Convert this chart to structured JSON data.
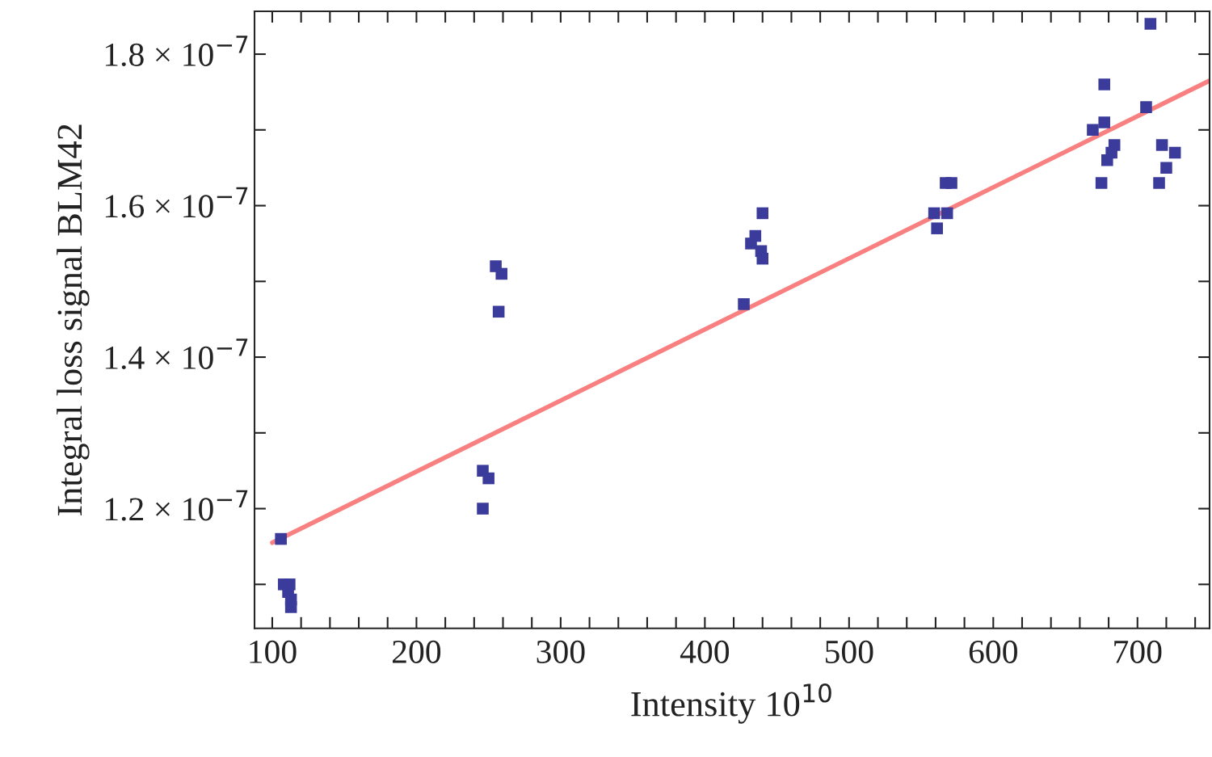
{
  "chart_data": {
    "type": "scatter",
    "xlabel": "Intensity 10$^{10}$",
    "ylabel": "Integral loss signal BLM42",
    "xlim": [
      87.7,
      750
    ],
    "ylim": [
      1.042e-07,
      1.8565e-07
    ],
    "xticks": [
      100,
      {
        "value": 120,
        "label": null
      },
      {
        "value": 140,
        "label": null
      },
      {
        "value": 160,
        "label": null
      },
      {
        "value": 180,
        "label": null
      },
      200,
      {
        "value": 220,
        "label": null
      },
      {
        "value": 240,
        "label": null
      },
      {
        "value": 260,
        "label": null
      },
      {
        "value": 280,
        "label": null
      },
      300,
      {
        "value": 320,
        "label": null
      },
      {
        "value": 340,
        "label": null
      },
      {
        "value": 360,
        "label": null
      },
      {
        "value": 380,
        "label": null
      },
      400,
      {
        "value": 420,
        "label": null
      },
      {
        "value": 440,
        "label": null
      },
      {
        "value": 460,
        "label": null
      },
      {
        "value": 480,
        "label": null
      },
      500,
      {
        "value": 520,
        "label": null
      },
      {
        "value": 540,
        "label": null
      },
      {
        "value": 560,
        "label": null
      },
      {
        "value": 580,
        "label": null
      },
      600,
      {
        "value": 620,
        "label": null
      },
      {
        "value": 640,
        "label": null
      },
      {
        "value": 660,
        "label": null
      },
      {
        "value": 680,
        "label": null
      },
      700,
      {
        "value": 720,
        "label": null
      },
      {
        "value": 740,
        "label": null
      }
    ],
    "yticks": [
      {
        "value": 1.1e-07,
        "label": null
      },
      {
        "value": 1.2e-07,
        "label": "1.2 × 10$^{−7}$"
      },
      {
        "value": 1.3e-07,
        "label": null
      },
      {
        "value": 1.4e-07,
        "label": "1.4 × 10$^{−7}$"
      },
      {
        "value": 1.5e-07,
        "label": null
      },
      {
        "value": 1.6e-07,
        "label": "1.6 × 10$^{−7}$"
      },
      {
        "value": 1.7e-07,
        "label": null
      },
      {
        "value": 1.8e-07,
        "label": "1.8 × 10$^{−7}$"
      }
    ],
    "grid": false,
    "legend": false,
    "series": [
      {
        "color": "#3b3b9b",
        "marker": "square",
        "x": [
          106,
          108,
          112,
          111,
          113,
          113,
          255,
          259,
          257,
          246,
          250,
          246,
          440,
          435,
          432,
          439,
          440,
          427,
          567,
          571,
          559,
          561,
          568,
          709,
          677,
          669,
          677,
          706,
          684,
          682,
          679,
          675,
          717,
          726,
          720,
          715
        ],
        "values": [
          1.16e-07,
          1.1e-07,
          1.1e-07,
          1.09e-07,
          1.08e-07,
          1.07e-07,
          1.52e-07,
          1.51e-07,
          1.46e-07,
          1.25e-07,
          1.24e-07,
          1.2e-07,
          1.59e-07,
          1.56e-07,
          1.55e-07,
          1.54e-07,
          1.53e-07,
          1.47e-07,
          1.63e-07,
          1.63e-07,
          1.59e-07,
          1.57e-07,
          1.59e-07,
          1.84e-07,
          1.76e-07,
          1.7e-07,
          1.71e-07,
          1.73e-07,
          1.68e-07,
          1.67e-07,
          1.66e-07,
          1.63e-07,
          1.68e-07,
          1.67e-07,
          1.65e-07,
          1.63e-07
        ]
      },
      {
        "type": "line",
        "color": "#f88080",
        "x": [
          100,
          750
        ],
        "values": [
          1.155e-07,
          1.765e-07
        ]
      }
    ]
  }
}
